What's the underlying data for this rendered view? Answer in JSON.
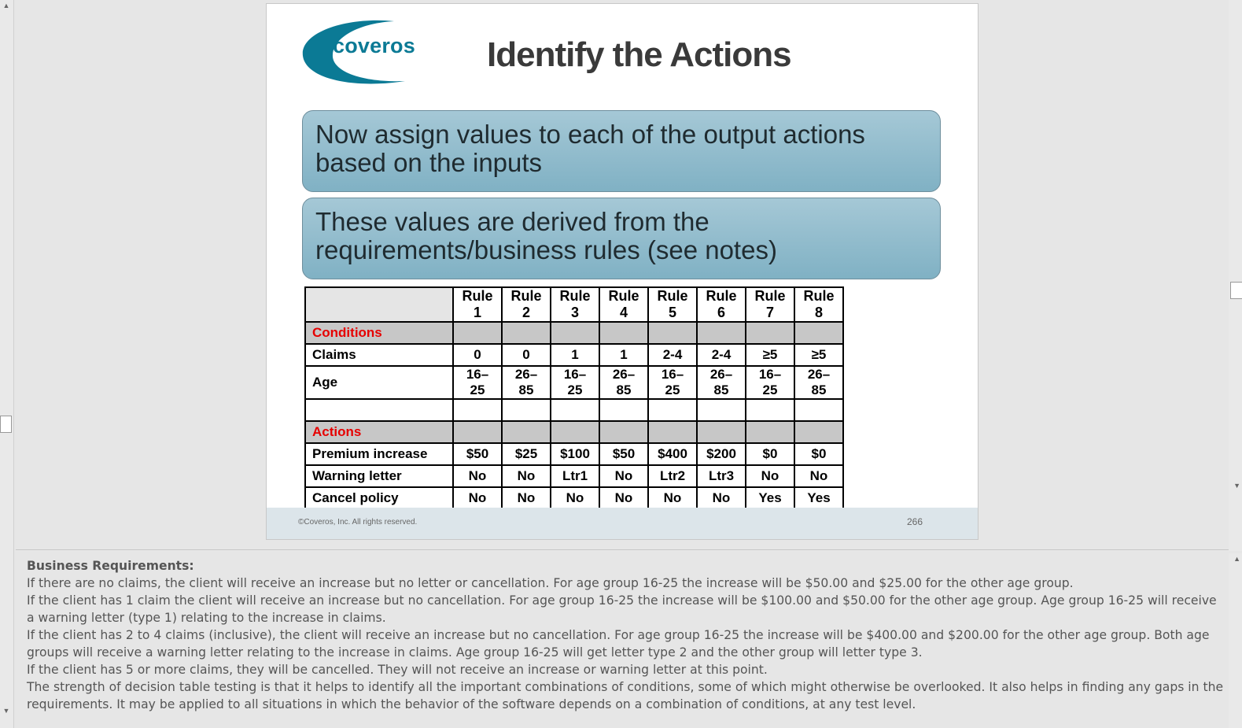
{
  "slide": {
    "logo_text": "coveros",
    "title": "Identify the Actions",
    "callout1": "Now assign values to each of the output actions based on the inputs",
    "callout2": "These values are derived from the requirements/business rules (see notes)",
    "footer_copyright": "©Coveros, Inc. All rights reserved.",
    "page_number": "266"
  },
  "table": {
    "headers": [
      "Rule 1",
      "Rule 2",
      "Rule 3",
      "Rule 4",
      "Rule 5",
      "Rule 6",
      "Rule 7",
      "Rule 8"
    ],
    "conditions_label": "Conditions",
    "actions_label": "Actions",
    "conditions": [
      {
        "label": "Claims",
        "values": [
          "0",
          "0",
          "1",
          "1",
          "2-4",
          "2-4",
          "≥5",
          "≥5"
        ]
      },
      {
        "label": "Age",
        "values": [
          "16–25",
          "26–85",
          "16–25",
          "26–85",
          "16–25",
          "26–85",
          "16–25",
          "26–85"
        ]
      }
    ],
    "actions": [
      {
        "label": "Premium increase",
        "values": [
          "$50",
          "$25",
          "$100",
          "$50",
          "$400",
          "$200",
          "$0",
          "$0"
        ]
      },
      {
        "label": "Warning letter",
        "values": [
          "No",
          "No",
          "Ltr1",
          "No",
          "Ltr2",
          "Ltr3",
          "No",
          "No"
        ]
      },
      {
        "label": "Cancel policy",
        "values": [
          "No",
          "No",
          "No",
          "No",
          "No",
          "No",
          "Yes",
          "Yes"
        ]
      }
    ]
  },
  "notes": {
    "heading": "Business Requirements:",
    "lines": [
      "If there are no claims, the client will receive an increase but no letter or cancellation. For age group 16-25 the increase will be $50.00 and $25.00 for the other age group.",
      "If the client has 1 claim the client will receive an increase but no cancellation. For age group 16-25 the increase will be $100.00 and $50.00 for the other age group. Age group 16-25 will receive a warning letter (type 1) relating to the increase in claims.",
      "If the client has 2 to 4 claims (inclusive), the client will receive an increase but no cancellation. For age group 16-25 the increase will be $400.00 and $200.00 for the other age group. Both age groups will receive a warning letter relating to the increase in claims. Age group 16-25 will get letter type 2 and the other group will letter type 3.",
      "If the client has 5 or more claims, they will be cancelled. They will not receive an increase or warning letter at this point.",
      "The strength of decision table testing is that it helps to identify all the important combinations of conditions, some of which might otherwise be overlooked. It also helps in finding any gaps in the requirements. It may be applied to all situations in which the behavior of the software depends on a combination of conditions, at any test level."
    ]
  }
}
